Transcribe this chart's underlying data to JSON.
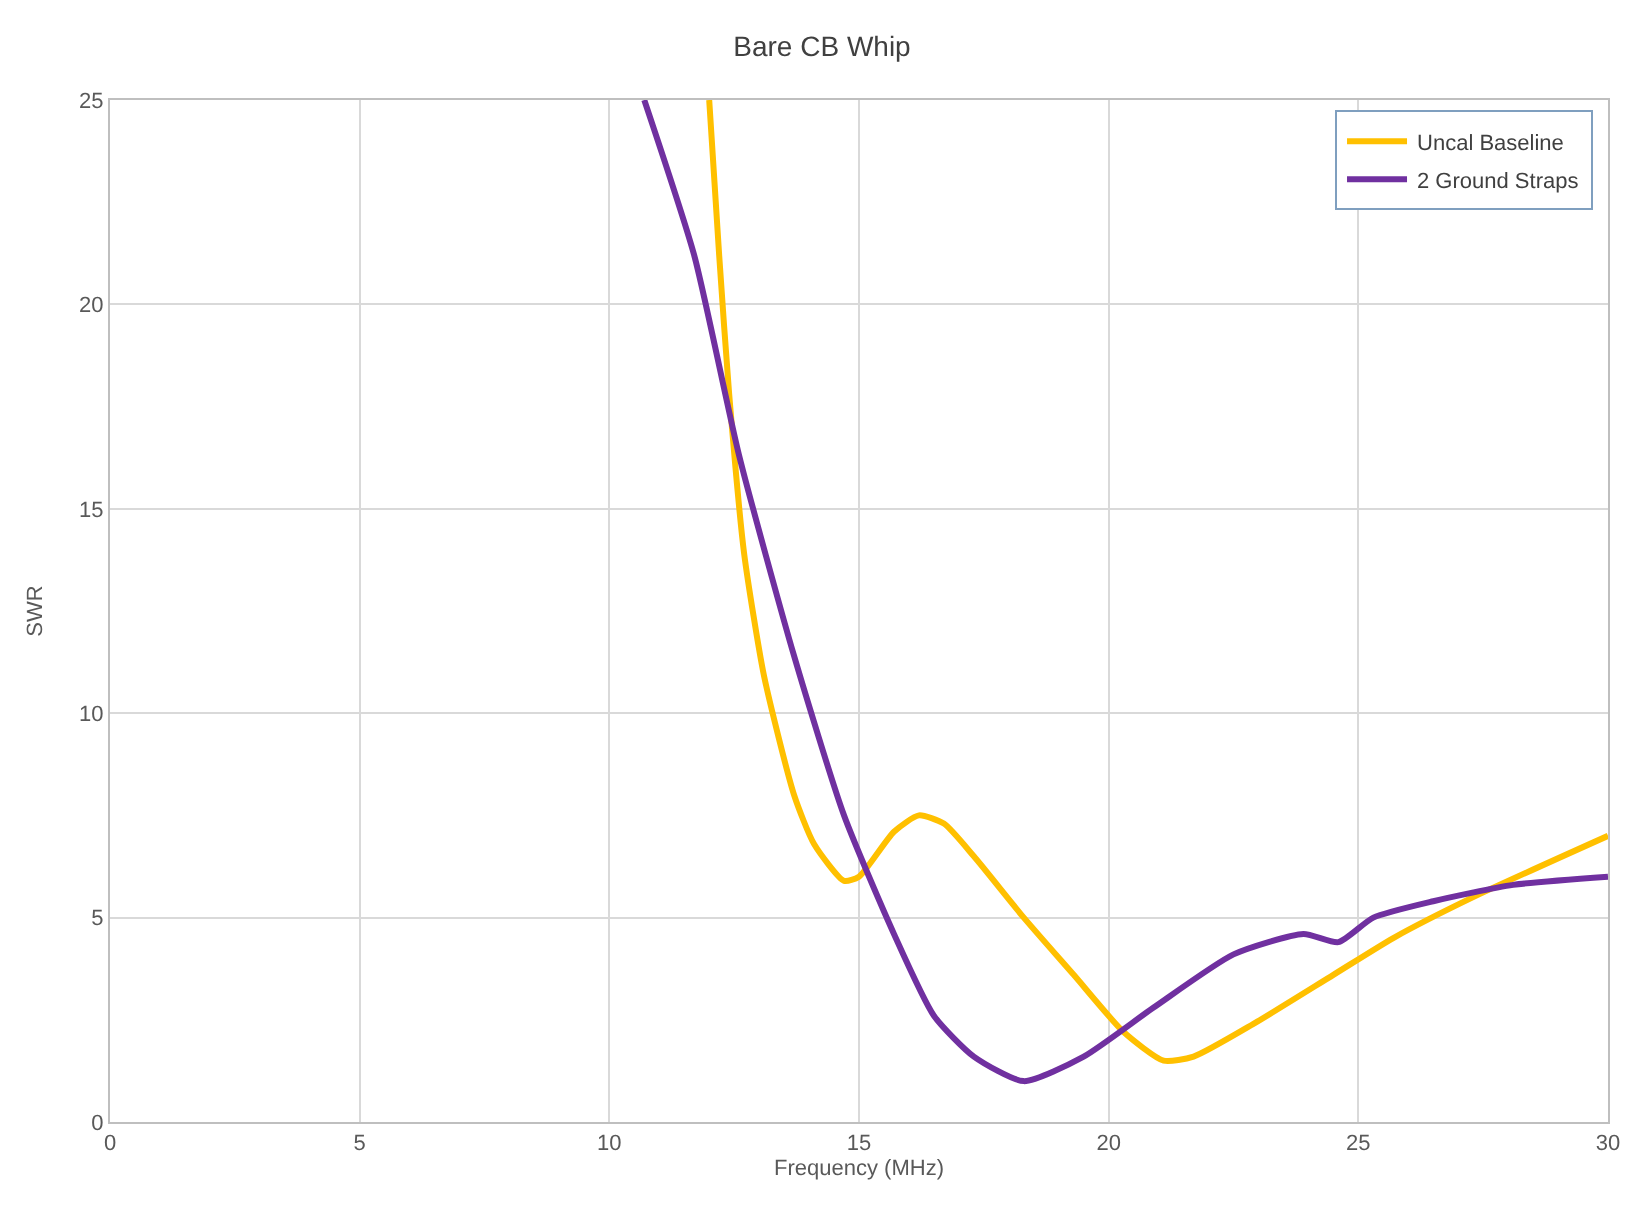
{
  "chart_data": {
    "type": "line",
    "title": "Bare CB Whip",
    "xlabel": "Frequency (MHz)",
    "ylabel": "SWR",
    "xlim": [
      0,
      30
    ],
    "xticks": [
      0,
      5,
      10,
      15,
      20,
      25,
      30
    ],
    "ylim": [
      0,
      25
    ],
    "yticks": [
      0,
      5,
      10,
      15,
      20,
      25
    ],
    "grid": true,
    "legend": "top right",
    "marker": "none",
    "line_style": "solid",
    "series": [
      {
        "name": "Uncal Baseline",
        "color": "#ffc000",
        "x": [
          12.0,
          12.2,
          12.4,
          12.7,
          13.1,
          13.7,
          14.1,
          14.7,
          15.0,
          15.7,
          16.2,
          16.7,
          17.3,
          18.3,
          19.3,
          20.3,
          21.1,
          21.7,
          22.9,
          24.5,
          25.7,
          27.3,
          30.0
        ],
        "values": [
          25,
          21.2,
          17.8,
          13.9,
          10.9,
          8.0,
          6.8,
          5.9,
          6.0,
          7.1,
          7.5,
          7.3,
          6.5,
          5.0,
          3.6,
          2.2,
          1.5,
          1.6,
          2.4,
          3.6,
          4.5,
          5.5,
          7.0
        ]
      },
      {
        "name": "2 Ground Straps",
        "color": "#7030a0",
        "x": [
          10.7,
          11.7,
          12.6,
          13.7,
          14.7,
          15.7,
          16.5,
          17.3,
          18.3,
          19.5,
          20.9,
          22.5,
          23.9,
          24.6,
          25.3,
          26.5,
          28.1,
          30.0
        ],
        "values": [
          25,
          21.2,
          16.3,
          11.4,
          7.5,
          4.6,
          2.6,
          1.6,
          1.0,
          1.6,
          2.8,
          4.1,
          4.6,
          4.4,
          5.0,
          5.4,
          5.8,
          6.0
        ]
      }
    ]
  }
}
